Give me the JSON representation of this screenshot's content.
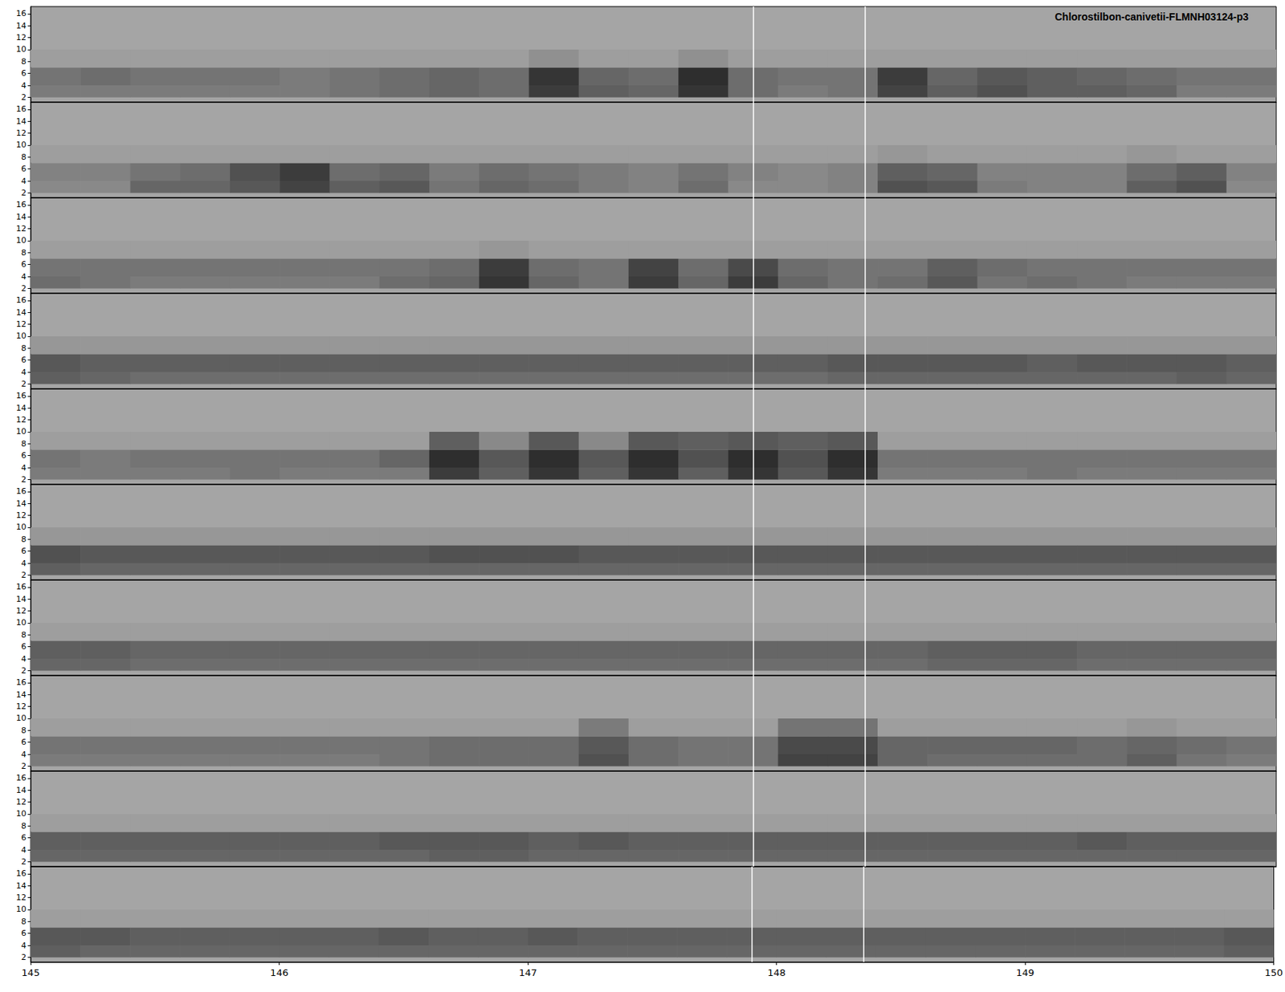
{
  "chart_data": {
    "type": "spectrogram",
    "title": "Chlorostilbon-canivetii-FLMNH03124-p3",
    "xlim": [
      145,
      150
    ],
    "xticks": [
      145,
      146,
      147,
      148,
      149,
      150
    ],
    "ylim": [
      1.2,
      17.2
    ],
    "yticks": [
      2,
      4,
      6,
      8,
      10,
      12,
      14,
      16
    ],
    "t_bins": [
      145,
      145.2,
      145.4,
      145.6,
      145.8,
      146,
      146.2,
      146.4,
      146.6,
      146.8,
      147,
      147.2,
      147.4,
      147.6,
      147.8,
      148,
      148.2,
      148.4,
      148.6,
      148.8,
      149,
      149.2,
      149.4,
      149.6,
      149.8,
      150
    ],
    "f_bins": [
      2,
      4,
      7,
      10
    ],
    "zlim": [
      0,
      1
    ],
    "markers": [
      147.9,
      148.35
    ],
    "panels": [
      {
        "cells": [
          [
            0.3,
            0.3,
            0.3,
            0.3,
            0.3,
            0.3,
            0.35,
            0.4,
            0.45,
            0.4,
            0.75,
            0.5,
            0.45,
            0.8,
            0.4,
            0.3,
            0.35,
            0.7,
            0.5,
            0.6,
            0.5,
            0.5,
            0.45,
            0.3,
            0.3
          ],
          [
            0.35,
            0.4,
            0.35,
            0.35,
            0.35,
            0.3,
            0.35,
            0.4,
            0.45,
            0.4,
            0.8,
            0.45,
            0.4,
            0.85,
            0.4,
            0.35,
            0.35,
            0.75,
            0.45,
            0.55,
            0.5,
            0.45,
            0.4,
            0.35,
            0.35
          ],
          [
            0.05,
            0.05,
            0.05,
            0.05,
            0.05,
            0.05,
            0.05,
            0.05,
            0.05,
            0.05,
            0.15,
            0.05,
            0.05,
            0.15,
            0.05,
            0.05,
            0.05,
            0.05,
            0.05,
            0.05,
            0.05,
            0.05,
            0.05,
            0.05,
            0.05
          ]
        ]
      },
      {
        "cells": [
          [
            0.2,
            0.2,
            0.45,
            0.45,
            0.55,
            0.7,
            0.5,
            0.55,
            0.35,
            0.45,
            0.4,
            0.3,
            0.25,
            0.4,
            0.2,
            0.2,
            0.25,
            0.6,
            0.55,
            0.3,
            0.25,
            0.25,
            0.5,
            0.6,
            0.2
          ],
          [
            0.25,
            0.25,
            0.35,
            0.4,
            0.6,
            0.75,
            0.4,
            0.45,
            0.3,
            0.4,
            0.35,
            0.3,
            0.25,
            0.35,
            0.25,
            0.2,
            0.25,
            0.5,
            0.45,
            0.25,
            0.25,
            0.25,
            0.4,
            0.5,
            0.25
          ],
          [
            0.05,
            0.05,
            0.05,
            0.05,
            0.05,
            0.05,
            0.05,
            0.05,
            0.05,
            0.05,
            0.05,
            0.05,
            0.05,
            0.05,
            0.05,
            0.05,
            0.05,
            0.1,
            0.05,
            0.05,
            0.05,
            0.05,
            0.1,
            0.05,
            0.05
          ]
        ]
      },
      {
        "cells": [
          [
            0.4,
            0.35,
            0.3,
            0.3,
            0.3,
            0.3,
            0.3,
            0.4,
            0.45,
            0.8,
            0.45,
            0.35,
            0.75,
            0.45,
            0.75,
            0.45,
            0.35,
            0.4,
            0.55,
            0.35,
            0.4,
            0.35,
            0.3,
            0.3,
            0.3
          ],
          [
            0.35,
            0.35,
            0.35,
            0.35,
            0.35,
            0.35,
            0.35,
            0.35,
            0.4,
            0.75,
            0.4,
            0.35,
            0.7,
            0.4,
            0.65,
            0.4,
            0.35,
            0.35,
            0.5,
            0.4,
            0.35,
            0.35,
            0.35,
            0.35,
            0.35
          ],
          [
            0.05,
            0.05,
            0.05,
            0.05,
            0.05,
            0.05,
            0.05,
            0.05,
            0.05,
            0.1,
            0.05,
            0.05,
            0.05,
            0.05,
            0.05,
            0.05,
            0.05,
            0.05,
            0.05,
            0.05,
            0.05,
            0.05,
            0.05,
            0.05,
            0.05
          ]
        ]
      },
      {
        "cells": [
          [
            0.5,
            0.45,
            0.4,
            0.4,
            0.4,
            0.4,
            0.4,
            0.4,
            0.4,
            0.4,
            0.4,
            0.4,
            0.4,
            0.4,
            0.4,
            0.4,
            0.45,
            0.45,
            0.45,
            0.45,
            0.45,
            0.45,
            0.45,
            0.5,
            0.45
          ],
          [
            0.55,
            0.5,
            0.5,
            0.5,
            0.5,
            0.5,
            0.5,
            0.5,
            0.5,
            0.5,
            0.5,
            0.5,
            0.5,
            0.5,
            0.5,
            0.5,
            0.55,
            0.55,
            0.55,
            0.55,
            0.5,
            0.55,
            0.55,
            0.55,
            0.5
          ],
          [
            0.1,
            0.1,
            0.1,
            0.1,
            0.1,
            0.1,
            0.1,
            0.1,
            0.1,
            0.1,
            0.1,
            0.1,
            0.1,
            0.1,
            0.1,
            0.1,
            0.1,
            0.1,
            0.1,
            0.1,
            0.1,
            0.1,
            0.1,
            0.1,
            0.1
          ]
        ]
      },
      {
        "cells": [
          [
            0.3,
            0.3,
            0.3,
            0.3,
            0.35,
            0.3,
            0.3,
            0.3,
            0.75,
            0.5,
            0.8,
            0.5,
            0.8,
            0.5,
            0.8,
            0.55,
            0.8,
            0.3,
            0.3,
            0.3,
            0.35,
            0.3,
            0.3,
            0.3,
            0.3
          ],
          [
            0.35,
            0.3,
            0.35,
            0.35,
            0.35,
            0.35,
            0.35,
            0.45,
            0.85,
            0.55,
            0.85,
            0.55,
            0.85,
            0.6,
            0.85,
            0.6,
            0.85,
            0.35,
            0.35,
            0.35,
            0.35,
            0.35,
            0.35,
            0.35,
            0.35
          ],
          [
            0.05,
            0.05,
            0.05,
            0.05,
            0.05,
            0.05,
            0.05,
            0.05,
            0.5,
            0.2,
            0.55,
            0.2,
            0.55,
            0.5,
            0.55,
            0.5,
            0.55,
            0.05,
            0.05,
            0.05,
            0.05,
            0.05,
            0.05,
            0.05,
            0.05
          ]
        ]
      },
      {
        "cells": [
          [
            0.5,
            0.45,
            0.45,
            0.45,
            0.45,
            0.45,
            0.45,
            0.45,
            0.45,
            0.45,
            0.45,
            0.45,
            0.45,
            0.45,
            0.45,
            0.45,
            0.45,
            0.45,
            0.45,
            0.45,
            0.45,
            0.45,
            0.45,
            0.45,
            0.45
          ],
          [
            0.6,
            0.55,
            0.55,
            0.55,
            0.55,
            0.55,
            0.55,
            0.55,
            0.6,
            0.6,
            0.6,
            0.55,
            0.55,
            0.55,
            0.55,
            0.55,
            0.55,
            0.55,
            0.55,
            0.55,
            0.55,
            0.55,
            0.55,
            0.55,
            0.55
          ],
          [
            0.1,
            0.1,
            0.1,
            0.1,
            0.1,
            0.1,
            0.1,
            0.1,
            0.1,
            0.1,
            0.1,
            0.1,
            0.1,
            0.1,
            0.1,
            0.1,
            0.1,
            0.1,
            0.1,
            0.1,
            0.1,
            0.1,
            0.1,
            0.1,
            0.1
          ]
        ]
      },
      {
        "cells": [
          [
            0.45,
            0.45,
            0.4,
            0.4,
            0.4,
            0.4,
            0.4,
            0.4,
            0.4,
            0.4,
            0.4,
            0.4,
            0.4,
            0.4,
            0.4,
            0.4,
            0.4,
            0.4,
            0.45,
            0.45,
            0.45,
            0.4,
            0.4,
            0.4,
            0.4
          ],
          [
            0.5,
            0.5,
            0.45,
            0.45,
            0.45,
            0.45,
            0.45,
            0.45,
            0.45,
            0.45,
            0.45,
            0.45,
            0.45,
            0.45,
            0.45,
            0.45,
            0.45,
            0.45,
            0.5,
            0.5,
            0.5,
            0.45,
            0.45,
            0.45,
            0.45
          ],
          [
            0.05,
            0.05,
            0.05,
            0.05,
            0.05,
            0.05,
            0.05,
            0.05,
            0.05,
            0.05,
            0.05,
            0.05,
            0.05,
            0.05,
            0.05,
            0.05,
            0.05,
            0.05,
            0.05,
            0.05,
            0.05,
            0.05,
            0.05,
            0.05,
            0.05
          ]
        ]
      },
      {
        "cells": [
          [
            0.3,
            0.3,
            0.3,
            0.3,
            0.3,
            0.3,
            0.3,
            0.35,
            0.4,
            0.4,
            0.4,
            0.6,
            0.4,
            0.35,
            0.35,
            0.7,
            0.7,
            0.45,
            0.4,
            0.4,
            0.4,
            0.4,
            0.5,
            0.35,
            0.3
          ],
          [
            0.35,
            0.35,
            0.35,
            0.35,
            0.35,
            0.35,
            0.35,
            0.35,
            0.4,
            0.4,
            0.4,
            0.55,
            0.4,
            0.35,
            0.35,
            0.65,
            0.65,
            0.45,
            0.45,
            0.45,
            0.45,
            0.4,
            0.45,
            0.4,
            0.35
          ],
          [
            0.05,
            0.05,
            0.05,
            0.05,
            0.05,
            0.05,
            0.05,
            0.05,
            0.05,
            0.05,
            0.05,
            0.3,
            0.05,
            0.05,
            0.05,
            0.35,
            0.35,
            0.05,
            0.05,
            0.05,
            0.05,
            0.05,
            0.1,
            0.05,
            0.05
          ]
        ]
      },
      {
        "cells": [
          [
            0.45,
            0.45,
            0.45,
            0.45,
            0.45,
            0.45,
            0.45,
            0.45,
            0.5,
            0.5,
            0.45,
            0.45,
            0.45,
            0.45,
            0.45,
            0.45,
            0.45,
            0.45,
            0.45,
            0.45,
            0.45,
            0.45,
            0.45,
            0.45,
            0.45
          ],
          [
            0.5,
            0.5,
            0.5,
            0.5,
            0.5,
            0.5,
            0.5,
            0.55,
            0.55,
            0.55,
            0.5,
            0.55,
            0.5,
            0.5,
            0.5,
            0.5,
            0.5,
            0.5,
            0.5,
            0.5,
            0.5,
            0.55,
            0.5,
            0.5,
            0.5
          ],
          [
            0.05,
            0.05,
            0.05,
            0.05,
            0.05,
            0.05,
            0.05,
            0.05,
            0.05,
            0.05,
            0.05,
            0.05,
            0.05,
            0.05,
            0.05,
            0.05,
            0.05,
            0.05,
            0.05,
            0.05,
            0.05,
            0.05,
            0.05,
            0.05,
            0.05
          ]
        ]
      },
      {
        "cells": [
          [
            0.5,
            0.45,
            0.45,
            0.45,
            0.45,
            0.45,
            0.45,
            0.45,
            0.45,
            0.45,
            0.45,
            0.45,
            0.45,
            0.45,
            0.45,
            0.45,
            0.45,
            0.45,
            0.45,
            0.45,
            0.45,
            0.45,
            0.45,
            0.45,
            0.5
          ],
          [
            0.55,
            0.55,
            0.5,
            0.5,
            0.5,
            0.5,
            0.5,
            0.55,
            0.5,
            0.5,
            0.55,
            0.5,
            0.5,
            0.5,
            0.5,
            0.5,
            0.5,
            0.5,
            0.5,
            0.5,
            0.5,
            0.5,
            0.5,
            0.5,
            0.55
          ],
          [
            0.05,
            0.05,
            0.05,
            0.05,
            0.05,
            0.05,
            0.05,
            0.05,
            0.05,
            0.05,
            0.05,
            0.05,
            0.05,
            0.05,
            0.05,
            0.05,
            0.05,
            0.05,
            0.05,
            0.05,
            0.05,
            0.05,
            0.05,
            0.05,
            0.05
          ]
        ]
      }
    ]
  }
}
